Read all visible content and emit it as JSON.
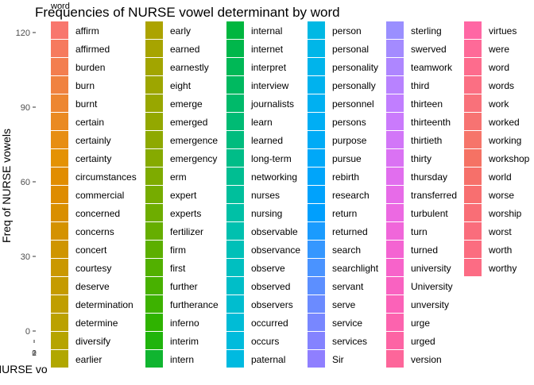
{
  "chart_data": {
    "type": "bar",
    "title": "Frequencies of NURSE vowel determinant by word",
    "xlabel": "NURSE vo",
    "ylabel": "Freq of NURSE vowels",
    "yticks": [
      "0",
      "30",
      "60",
      "90",
      "120"
    ],
    "xticks": [
      "0",
      "1",
      "2"
    ],
    "ylim": [
      -5,
      125
    ],
    "grid": false,
    "legend": {
      "title": "word",
      "placement": "right",
      "entries": [
        {
          "label": "affirm",
          "color": "#F8766D"
        },
        {
          "label": "affirmed",
          "color": "#F67A5E"
        },
        {
          "label": "burden",
          "color": "#F37E4F"
        },
        {
          "label": "burn",
          "color": "#F08240"
        },
        {
          "label": "burnt",
          "color": "#ED8631"
        },
        {
          "label": "certain",
          "color": "#EA8A22"
        },
        {
          "label": "certainly",
          "color": "#E78E13"
        },
        {
          "label": "certainty",
          "color": "#E49204"
        },
        {
          "label": "circumstances",
          "color": "#E18D00"
        },
        {
          "label": "commercial",
          "color": "#DE8C00"
        },
        {
          "label": "concerned",
          "color": "#D98F00"
        },
        {
          "label": "concerns",
          "color": "#D49200"
        },
        {
          "label": "concert",
          "color": "#CF9500"
        },
        {
          "label": "courtesy",
          "color": "#CA9800"
        },
        {
          "label": "deserve",
          "color": "#C59B00"
        },
        {
          "label": "determination",
          "color": "#C09E00"
        },
        {
          "label": "determine",
          "color": "#BBA100"
        },
        {
          "label": "diversify",
          "color": "#B6A400"
        },
        {
          "label": "earlier",
          "color": "#B1A700"
        },
        {
          "label": "early",
          "color": "#ACA300"
        },
        {
          "label": "earned",
          "color": "#A7A400"
        },
        {
          "label": "earnestly",
          "color": "#A2A500"
        },
        {
          "label": "eight",
          "color": "#9DA600"
        },
        {
          "label": "emerge",
          "color": "#98A700"
        },
        {
          "label": "emerged",
          "color": "#93A800"
        },
        {
          "label": "emergence",
          "color": "#8EA900"
        },
        {
          "label": "emergency",
          "color": "#86AA00"
        },
        {
          "label": "erm",
          "color": "#7EAB00"
        },
        {
          "label": "expert",
          "color": "#76AC00"
        },
        {
          "label": "experts",
          "color": "#6EAD00"
        },
        {
          "label": "fertilizer",
          "color": "#66AE00"
        },
        {
          "label": "firm",
          "color": "#5CAF00"
        },
        {
          "label": "first",
          "color": "#52B000"
        },
        {
          "label": "further",
          "color": "#48B100"
        },
        {
          "label": "furtherance",
          "color": "#3DB200"
        },
        {
          "label": "inferno",
          "color": "#2FB300"
        },
        {
          "label": "interim",
          "color": "#20B40C"
        },
        {
          "label": "intern",
          "color": "#10B530"
        },
        {
          "label": "internal",
          "color": "#00B63F"
        },
        {
          "label": "internet",
          "color": "#00B74B"
        },
        {
          "label": "interpret",
          "color": "#00B856"
        },
        {
          "label": "interview",
          "color": "#00B960"
        },
        {
          "label": "journalists",
          "color": "#00BA6A"
        },
        {
          "label": "learn",
          "color": "#00BB74"
        },
        {
          "label": "learned",
          "color": "#00BC7E"
        },
        {
          "label": "long-term",
          "color": "#00BD88"
        },
        {
          "label": "networking",
          "color": "#00BE92"
        },
        {
          "label": "nurses",
          "color": "#00BF9C"
        },
        {
          "label": "nursing",
          "color": "#00C0A6"
        },
        {
          "label": "observable",
          "color": "#00C0AF"
        },
        {
          "label": "observance",
          "color": "#00C0B8"
        },
        {
          "label": "observe",
          "color": "#00BFC0"
        },
        {
          "label": "observed",
          "color": "#00BEC8"
        },
        {
          "label": "observers",
          "color": "#00BDCF"
        },
        {
          "label": "occurred",
          "color": "#00BCD6"
        },
        {
          "label": "occurs",
          "color": "#00BBDC"
        },
        {
          "label": "paternal",
          "color": "#00BAE0"
        },
        {
          "label": "person",
          "color": "#00B8E4"
        },
        {
          "label": "personal",
          "color": "#00B6E8"
        },
        {
          "label": "personality",
          "color": "#00B4EB"
        },
        {
          "label": "personally",
          "color": "#00B2EE"
        },
        {
          "label": "personnel",
          "color": "#00B0F1"
        },
        {
          "label": "persons",
          "color": "#00AEF4"
        },
        {
          "label": "purpose",
          "color": "#00ABF6"
        },
        {
          "label": "pursue",
          "color": "#00A8F8"
        },
        {
          "label": "rebirth",
          "color": "#00A5FA"
        },
        {
          "label": "research",
          "color": "#00A2FC"
        },
        {
          "label": "return",
          "color": "#009FFD"
        },
        {
          "label": "returned",
          "color": "#1A9BFE"
        },
        {
          "label": "search",
          "color": "#3597FF"
        },
        {
          "label": "searchlight",
          "color": "#4A93FF"
        },
        {
          "label": "servant",
          "color": "#5C8FFF"
        },
        {
          "label": "serve",
          "color": "#6B8BFF"
        },
        {
          "label": "service",
          "color": "#7887FF"
        },
        {
          "label": "services",
          "color": "#8483FF"
        },
        {
          "label": "Sir",
          "color": "#8F7FFF"
        },
        {
          "label": "sterling",
          "color": "#9A8FFF"
        },
        {
          "label": "swerved",
          "color": "#A48BFF"
        },
        {
          "label": "teamwork",
          "color": "#AE86FF"
        },
        {
          "label": "third",
          "color": "#B882FF"
        },
        {
          "label": "thirteen",
          "color": "#C17EFF"
        },
        {
          "label": "thirteenth",
          "color": "#CA7AFC"
        },
        {
          "label": "thirtieth",
          "color": "#D276F8"
        },
        {
          "label": "thirty",
          "color": "#DA72F3"
        },
        {
          "label": "thursday",
          "color": "#E16EEE"
        },
        {
          "label": "transferred",
          "color": "#E76BE8"
        },
        {
          "label": "turbulent",
          "color": "#EC69E2"
        },
        {
          "label": "turn",
          "color": "#F066DA"
        },
        {
          "label": "turned",
          "color": "#F464D2"
        },
        {
          "label": "university",
          "color": "#F763CA"
        },
        {
          "label": "University",
          "color": "#F962C1"
        },
        {
          "label": "unversity",
          "color": "#FB62B8"
        },
        {
          "label": "urge",
          "color": "#FC63AE"
        },
        {
          "label": "urged",
          "color": "#FD64A4"
        },
        {
          "label": "version",
          "color": "#FD669A"
        },
        {
          "label": "virtues",
          "color": "#FF67A4"
        },
        {
          "label": "were",
          "color": "#FE6A98"
        },
        {
          "label": "word",
          "color": "#FD6C8D"
        },
        {
          "label": "words",
          "color": "#FB6F83"
        },
        {
          "label": "work",
          "color": "#F9717A"
        },
        {
          "label": "worked",
          "color": "#F77372"
        },
        {
          "label": "working",
          "color": "#F6756A"
        },
        {
          "label": "workshop",
          "color": "#F57264"
        },
        {
          "label": "world",
          "color": "#F6706A"
        },
        {
          "label": "worse",
          "color": "#F86F70"
        },
        {
          "label": "worship",
          "color": "#F96E76"
        },
        {
          "label": "worst",
          "color": "#FA6D7C"
        },
        {
          "label": "worth",
          "color": "#FB6D80"
        },
        {
          "label": "worthy",
          "color": "#FC6C84"
        }
      ]
    }
  }
}
